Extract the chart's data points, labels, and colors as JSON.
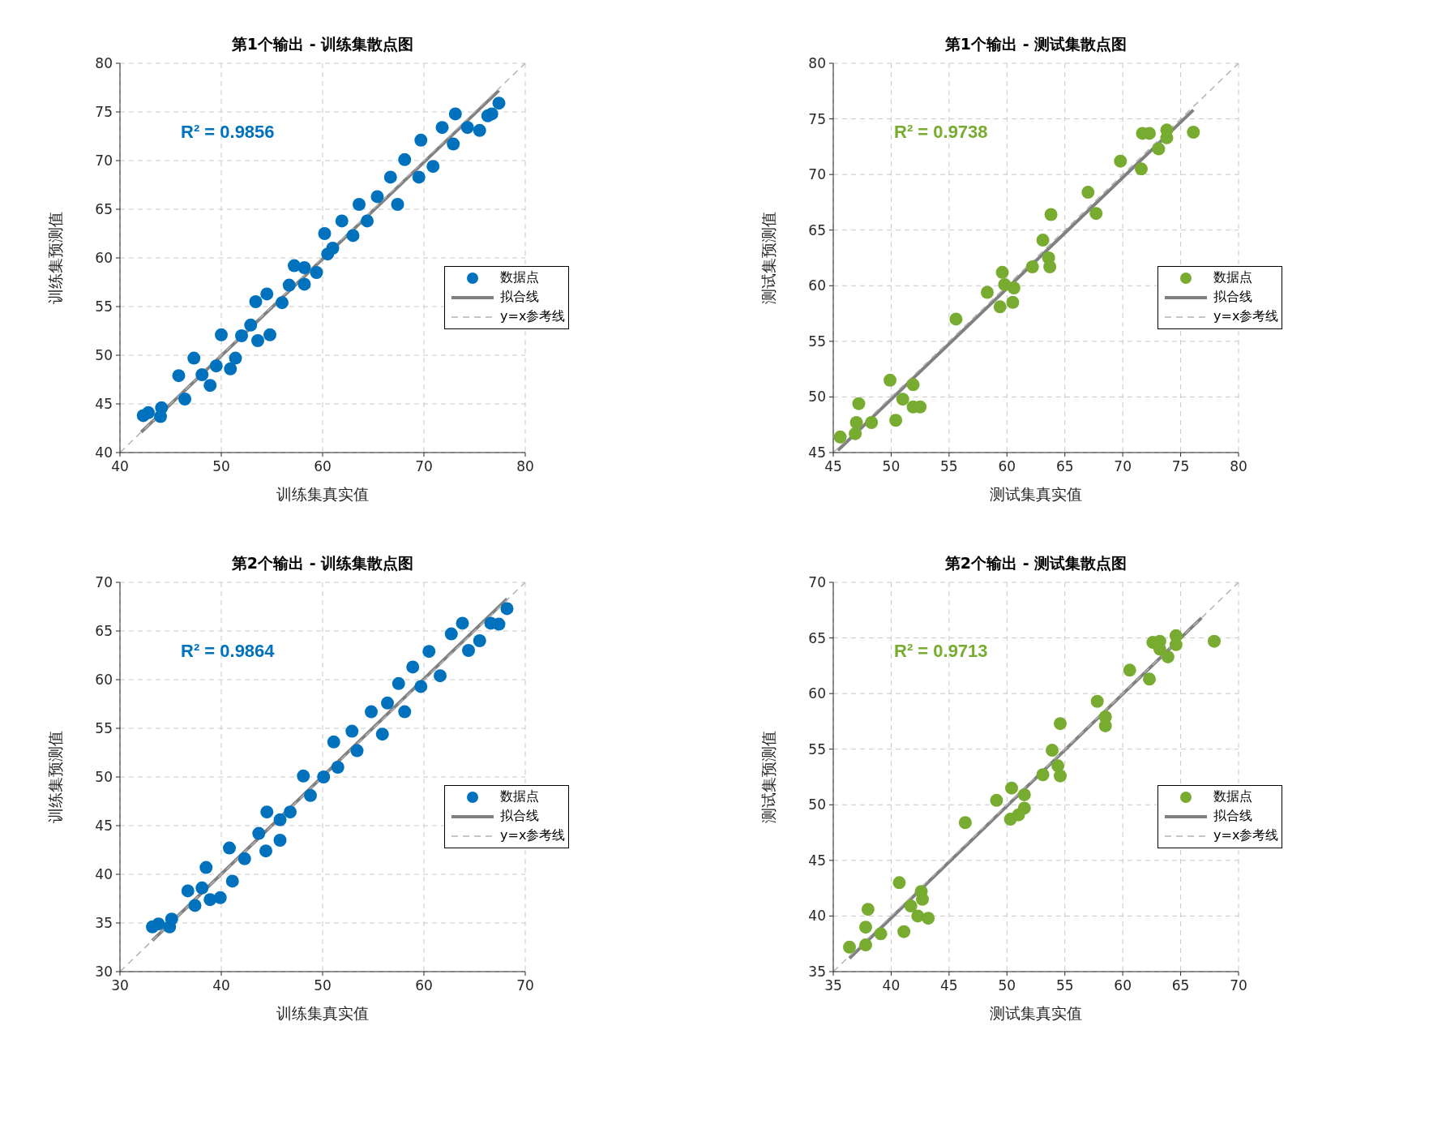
{
  "chart_data": [
    {
      "type": "scatter",
      "title": "第1个输出 - 训练集散点图",
      "xlabel": "训练集真实值",
      "ylabel": "训练集预测值",
      "annotations": [
        "R² = 0.9856"
      ],
      "xlim": [
        40,
        80
      ],
      "ylim": [
        40,
        80
      ],
      "xticks": [
        40,
        50,
        60,
        70,
        80
      ],
      "yticks": [
        40,
        45,
        50,
        55,
        60,
        65,
        70,
        75,
        80
      ],
      "grid": true,
      "legend": "right",
      "series": [
        {
          "name": "数据点",
          "marker": "circle",
          "color": "#0072bd",
          "x": [
            42.3,
            42.8,
            44.1,
            44.0,
            45.8,
            46.4,
            47.3,
            48.1,
            48.9,
            49.5,
            50.0,
            50.9,
            51.4,
            52.0,
            52.9,
            53.6,
            54.8,
            53.4,
            54.5,
            56.0,
            56.7,
            57.2,
            58.2,
            58.2,
            59.4,
            60.2,
            60.5,
            61.0,
            61.9,
            63.0,
            63.6,
            64.4,
            65.4,
            66.7,
            67.4,
            68.1,
            69.5,
            69.7,
            70.9,
            71.8,
            72.9,
            73.1,
            74.3,
            75.5,
            76.3,
            76.7,
            77.4
          ],
          "values": [
            43.8,
            44.1,
            44.6,
            43.7,
            47.9,
            45.5,
            49.7,
            48.0,
            46.9,
            48.9,
            52.1,
            48.6,
            49.7,
            52.0,
            53.1,
            51.5,
            52.1,
            55.5,
            56.3,
            55.4,
            57.2,
            59.2,
            59.0,
            57.3,
            58.5,
            62.5,
            60.4,
            61.0,
            63.8,
            62.3,
            65.5,
            63.8,
            66.3,
            68.3,
            65.5,
            70.1,
            68.3,
            72.1,
            69.4,
            73.4,
            71.7,
            74.8,
            73.4,
            73.1,
            74.6,
            74.8,
            75.9
          ]
        },
        {
          "name": "拟合线",
          "type": "line",
          "marker": "none",
          "line_style": "solid",
          "color": "#808080",
          "x": [
            42.1,
            77.4
          ],
          "values": [
            42.1,
            77.2
          ]
        },
        {
          "name": "y=x参考线",
          "type": "line",
          "marker": "none",
          "line_style": "dashed",
          "color": "#b3b3b3",
          "x": [
            40,
            80
          ],
          "values": [
            40,
            80
          ]
        }
      ]
    },
    {
      "type": "scatter",
      "title": "第1个输出 - 测试集散点图",
      "xlabel": "测试集真实值",
      "ylabel": "测试集预测值",
      "annotations": [
        "R² = 0.9738"
      ],
      "xlim": [
        45,
        80
      ],
      "ylim": [
        45,
        80
      ],
      "xticks": [
        45,
        50,
        55,
        60,
        65,
        70,
        75,
        80
      ],
      "yticks": [
        45,
        50,
        55,
        60,
        65,
        70,
        75,
        80
      ],
      "grid": true,
      "legend": "right",
      "series": [
        {
          "name": "数据点",
          "marker": "circle",
          "color": "#77ac30",
          "x": [
            45.6,
            46.9,
            47.0,
            48.3,
            47.2,
            49.9,
            50.4,
            51.0,
            51.9,
            51.9,
            52.5,
            55.6,
            58.3,
            59.4,
            59.6,
            59.8,
            60.6,
            60.5,
            62.2,
            63.1,
            63.6,
            63.7,
            63.8,
            67.0,
            67.7,
            69.8,
            71.6,
            71.7,
            72.3,
            73.1,
            73.8,
            73.8,
            76.1
          ],
          "values": [
            46.4,
            46.7,
            47.7,
            47.7,
            49.4,
            51.5,
            47.9,
            49.8,
            51.1,
            49.1,
            49.1,
            57.0,
            59.4,
            58.1,
            61.2,
            60.1,
            59.8,
            58.5,
            61.7,
            64.1,
            62.5,
            61.7,
            66.4,
            68.4,
            66.5,
            71.2,
            70.5,
            73.7,
            73.7,
            72.3,
            74.0,
            73.3,
            73.8
          ]
        },
        {
          "name": "拟合线",
          "type": "line",
          "marker": "none",
          "line_style": "solid",
          "color": "#808080",
          "x": [
            45.4,
            76.1
          ],
          "values": [
            45.2,
            75.8
          ]
        },
        {
          "name": "y=x参考线",
          "type": "line",
          "marker": "none",
          "line_style": "dashed",
          "color": "#b3b3b3",
          "x": [
            45,
            80
          ],
          "values": [
            45,
            80
          ]
        }
      ]
    },
    {
      "type": "scatter",
      "title": "第2个输出 - 训练集散点图",
      "xlabel": "训练集真实值",
      "ylabel": "训练集预测值",
      "annotations": [
        "R² = 0.9864"
      ],
      "xlim": [
        30,
        70
      ],
      "ylim": [
        30,
        70
      ],
      "xticks": [
        30,
        40,
        50,
        60,
        70
      ],
      "yticks": [
        30,
        35,
        40,
        45,
        50,
        55,
        60,
        65,
        70
      ],
      "grid": true,
      "legend": "right",
      "series": [
        {
          "name": "数据点",
          "marker": "circle",
          "color": "#0072bd",
          "x": [
            33.2,
            33.8,
            34.9,
            35.1,
            36.7,
            37.4,
            38.5,
            38.1,
            38.9,
            39.9,
            40.8,
            41.1,
            42.3,
            43.7,
            44.4,
            45.8,
            44.5,
            45.8,
            46.8,
            48.1,
            48.8,
            50.1,
            51.1,
            51.5,
            52.9,
            53.4,
            54.8,
            55.9,
            56.4,
            57.5,
            58.1,
            58.9,
            59.7,
            60.5,
            61.6,
            62.7,
            63.8,
            64.4,
            65.5,
            66.6,
            67.4,
            68.2
          ],
          "values": [
            34.6,
            34.9,
            34.6,
            35.4,
            38.3,
            36.8,
            40.7,
            38.6,
            37.4,
            37.6,
            42.7,
            39.3,
            41.6,
            44.2,
            42.4,
            43.5,
            46.4,
            45.6,
            46.4,
            50.1,
            48.1,
            50.0,
            53.6,
            51.0,
            54.7,
            52.7,
            56.7,
            54.4,
            57.6,
            59.6,
            56.7,
            61.3,
            59.3,
            62.9,
            60.4,
            64.7,
            65.8,
            63.0,
            64.0,
            65.8,
            65.7,
            67.3
          ]
        },
        {
          "name": "拟合线",
          "type": "line",
          "marker": "none",
          "line_style": "solid",
          "color": "#808080",
          "x": [
            33.2,
            68.2
          ],
          "values": [
            33.2,
            68.3
          ]
        },
        {
          "name": "y=x参考线",
          "type": "line",
          "marker": "none",
          "line_style": "dashed",
          "color": "#b3b3b3",
          "x": [
            30,
            70
          ],
          "values": [
            30,
            70
          ]
        }
      ]
    },
    {
      "type": "scatter",
      "title": "第2个输出 - 测试集散点图",
      "xlabel": "测试集真实值",
      "ylabel": "测试集预测值",
      "annotations": [
        "R² = 0.9713"
      ],
      "xlim": [
        35,
        70
      ],
      "ylim": [
        35,
        70
      ],
      "xticks": [
        35,
        40,
        45,
        50,
        55,
        60,
        65,
        70
      ],
      "yticks": [
        35,
        40,
        45,
        50,
        55,
        60,
        65,
        70
      ],
      "grid": true,
      "legend": "right",
      "series": [
        {
          "name": "数据点",
          "marker": "circle",
          "color": "#77ac30",
          "x": [
            36.4,
            37.8,
            37.8,
            38.0,
            39.1,
            41.1,
            40.7,
            41.7,
            42.6,
            42.7,
            42.3,
            43.2,
            46.4,
            49.1,
            50.3,
            51.0,
            51.5,
            50.4,
            51.5,
            53.1,
            53.9,
            54.4,
            54.6,
            54.6,
            57.8,
            58.5,
            58.5,
            60.6,
            62.3,
            62.6,
            63.2,
            63.2,
            63.9,
            64.6,
            64.6,
            67.9
          ],
          "values": [
            37.2,
            37.4,
            39.0,
            40.6,
            38.4,
            38.6,
            43.0,
            40.9,
            42.2,
            41.5,
            40.0,
            39.8,
            48.4,
            50.4,
            48.7,
            49.1,
            49.7,
            51.5,
            50.9,
            52.7,
            54.9,
            53.5,
            52.6,
            57.3,
            59.3,
            57.9,
            57.1,
            62.1,
            61.3,
            64.6,
            64.7,
            64.0,
            63.3,
            65.2,
            64.4,
            64.7
          ]
        },
        {
          "name": "拟合线",
          "type": "line",
          "marker": "none",
          "line_style": "solid",
          "color": "#808080",
          "x": [
            36.4,
            66.8
          ],
          "values": [
            36.2,
            66.8
          ]
        },
        {
          "name": "y=x参考线",
          "type": "line",
          "marker": "none",
          "line_style": "dashed",
          "color": "#b3b3b3",
          "x": [
            35,
            70
          ],
          "values": [
            35,
            70
          ]
        }
      ]
    }
  ]
}
